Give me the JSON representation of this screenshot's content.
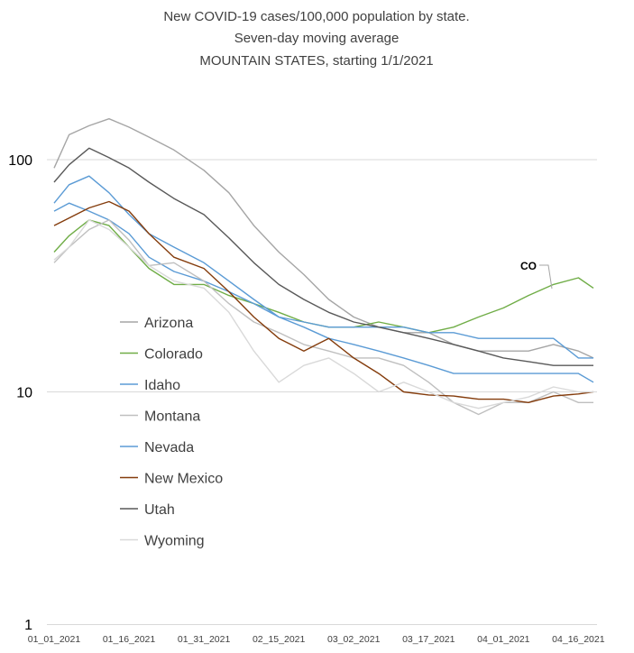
{
  "chart_data": {
    "type": "line",
    "title": "New COVID-19 cases/100,000 population by state.",
    "subtitle": "Seven-day moving average",
    "subtitle2": "MOUNTAIN STATES, starting 1/1/2021",
    "yscale": "log",
    "ylim": [
      1,
      200
    ],
    "yticks": [
      "100",
      "10",
      "1"
    ],
    "x_tick_labels": [
      "01_01_2021",
      "01_16_2021",
      "01_31_2021",
      "02_15_2021",
      "03_02_2021",
      "03_17_2021",
      "04_01_2021",
      "04_16_2021"
    ],
    "x_tick_dates": [
      "2021-01-01",
      "2021-01-16",
      "2021-01-31",
      "2021-02-15",
      "2021-03-02",
      "2021-03-17",
      "2021-04-01",
      "2021-04-16"
    ],
    "x_end_date": "2021-04-19",
    "grid": true,
    "legend_position": "left-middle",
    "annotation": {
      "text": "CO",
      "series": "Colorado"
    },
    "series": [
      {
        "name": "Arizona",
        "color": "#a5a5a5",
        "x": [
          "2021-01-01",
          "2021-01-04",
          "2021-01-08",
          "2021-01-12",
          "2021-01-16",
          "2021-01-20",
          "2021-01-25",
          "2021-01-31",
          "2021-02-05",
          "2021-02-10",
          "2021-02-15",
          "2021-02-20",
          "2021-02-25",
          "2021-03-02",
          "2021-03-07",
          "2021-03-12",
          "2021-03-17",
          "2021-03-22",
          "2021-03-27",
          "2021-04-01",
          "2021-04-06",
          "2021-04-11",
          "2021-04-16",
          "2021-04-19"
        ],
        "values": [
          92,
          128,
          140,
          150,
          138,
          125,
          110,
          90,
          72,
          52,
          40,
          32,
          25,
          21,
          19,
          18,
          18,
          16,
          15,
          15,
          15,
          16,
          15,
          14
        ]
      },
      {
        "name": "Colorado",
        "color": "#70ad47",
        "x": [
          "2021-01-01",
          "2021-01-04",
          "2021-01-08",
          "2021-01-12",
          "2021-01-16",
          "2021-01-20",
          "2021-01-25",
          "2021-01-31",
          "2021-02-05",
          "2021-02-10",
          "2021-02-15",
          "2021-02-20",
          "2021-02-25",
          "2021-03-02",
          "2021-03-07",
          "2021-03-12",
          "2021-03-17",
          "2021-03-22",
          "2021-03-27",
          "2021-04-01",
          "2021-04-06",
          "2021-04-11",
          "2021-04-16",
          "2021-04-19"
        ],
        "values": [
          40,
          47,
          55,
          52,
          42,
          34,
          29,
          29,
          26,
          24,
          22,
          20,
          19,
          19,
          20,
          19,
          18,
          19,
          21,
          23,
          26,
          29,
          31,
          28
        ]
      },
      {
        "name": "Idaho",
        "color": "#5b9bd5",
        "x": [
          "2021-01-01",
          "2021-01-04",
          "2021-01-08",
          "2021-01-12",
          "2021-01-16",
          "2021-01-20",
          "2021-01-25",
          "2021-01-31",
          "2021-02-05",
          "2021-02-10",
          "2021-02-15",
          "2021-02-20",
          "2021-02-25",
          "2021-03-02",
          "2021-03-07",
          "2021-03-12",
          "2021-03-17",
          "2021-03-22",
          "2021-03-27",
          "2021-04-01",
          "2021-04-06",
          "2021-04-11",
          "2021-04-16",
          "2021-04-19"
        ],
        "values": [
          60,
          65,
          60,
          55,
          48,
          38,
          33,
          30,
          27,
          24,
          21,
          20,
          19,
          19,
          19,
          19,
          18,
          18,
          17,
          17,
          17,
          17,
          14,
          14
        ]
      },
      {
        "name": "Montana",
        "color": "#bfbfbf",
        "x": [
          "2021-01-01",
          "2021-01-04",
          "2021-01-08",
          "2021-01-12",
          "2021-01-16",
          "2021-01-20",
          "2021-01-25",
          "2021-01-31",
          "2021-02-05",
          "2021-02-10",
          "2021-02-15",
          "2021-02-20",
          "2021-02-25",
          "2021-03-02",
          "2021-03-07",
          "2021-03-12",
          "2021-03-17",
          "2021-03-22",
          "2021-03-27",
          "2021-04-01",
          "2021-04-06",
          "2021-04-11",
          "2021-04-16",
          "2021-04-19"
        ],
        "values": [
          36,
          42,
          50,
          55,
          45,
          35,
          36,
          30,
          24,
          20,
          18,
          16,
          15,
          14,
          14,
          13,
          11,
          9,
          8,
          9,
          9,
          10,
          9,
          9
        ]
      },
      {
        "name": "Nevada",
        "color": "#5b9bd5",
        "x": [
          "2021-01-01",
          "2021-01-04",
          "2021-01-08",
          "2021-01-12",
          "2021-01-16",
          "2021-01-20",
          "2021-01-25",
          "2021-01-31",
          "2021-02-05",
          "2021-02-10",
          "2021-02-15",
          "2021-02-20",
          "2021-02-25",
          "2021-03-02",
          "2021-03-07",
          "2021-03-12",
          "2021-03-17",
          "2021-03-22",
          "2021-03-27",
          "2021-04-01",
          "2021-04-06",
          "2021-04-11",
          "2021-04-16",
          "2021-04-19"
        ],
        "values": [
          65,
          78,
          85,
          72,
          58,
          48,
          42,
          36,
          30,
          25,
          21,
          19,
          17,
          16,
          15,
          14,
          13,
          12,
          12,
          12,
          12,
          12,
          12,
          11
        ]
      },
      {
        "name": "New Mexico",
        "color": "#843c0c",
        "x": [
          "2021-01-01",
          "2021-01-04",
          "2021-01-08",
          "2021-01-12",
          "2021-01-16",
          "2021-01-20",
          "2021-01-25",
          "2021-01-31",
          "2021-02-05",
          "2021-02-10",
          "2021-02-15",
          "2021-02-20",
          "2021-02-25",
          "2021-03-02",
          "2021-03-07",
          "2021-03-12",
          "2021-03-17",
          "2021-03-22",
          "2021-03-27",
          "2021-04-01",
          "2021-04-06",
          "2021-04-11",
          "2021-04-16",
          "2021-04-19"
        ],
        "values": [
          52,
          56,
          62,
          66,
          60,
          48,
          38,
          34,
          27,
          21,
          17,
          15,
          17,
          14,
          12,
          10,
          9.7,
          9.6,
          9.3,
          9.3,
          9,
          9.6,
          9.8,
          10
        ]
      },
      {
        "name": "Utah",
        "color": "#595959",
        "x": [
          "2021-01-01",
          "2021-01-04",
          "2021-01-08",
          "2021-01-12",
          "2021-01-16",
          "2021-01-20",
          "2021-01-25",
          "2021-01-31",
          "2021-02-05",
          "2021-02-10",
          "2021-02-15",
          "2021-02-20",
          "2021-02-25",
          "2021-03-02",
          "2021-03-07",
          "2021-03-12",
          "2021-03-17",
          "2021-03-22",
          "2021-03-27",
          "2021-04-01",
          "2021-04-06",
          "2021-04-11",
          "2021-04-16",
          "2021-04-19"
        ],
        "values": [
          80,
          95,
          112,
          102,
          92,
          80,
          68,
          58,
          46,
          36,
          29,
          25,
          22,
          20,
          19,
          18,
          17,
          16,
          15,
          14,
          13.5,
          13,
          13,
          13
        ]
      },
      {
        "name": "Wyoming",
        "color": "#d9d9d9",
        "x": [
          "2021-01-01",
          "2021-01-04",
          "2021-01-08",
          "2021-01-12",
          "2021-01-16",
          "2021-01-20",
          "2021-01-25",
          "2021-01-31",
          "2021-02-05",
          "2021-02-10",
          "2021-02-15",
          "2021-02-20",
          "2021-02-25",
          "2021-03-02",
          "2021-03-07",
          "2021-03-12",
          "2021-03-17",
          "2021-03-22",
          "2021-03-27",
          "2021-04-01",
          "2021-04-06",
          "2021-04-11",
          "2021-04-16",
          "2021-04-19"
        ],
        "values": [
          37,
          42,
          55,
          50,
          42,
          35,
          30,
          28,
          22,
          15,
          11,
          13,
          14,
          12,
          10,
          11,
          10,
          9,
          8.5,
          9,
          9.5,
          10.5,
          10,
          10
        ]
      }
    ]
  }
}
